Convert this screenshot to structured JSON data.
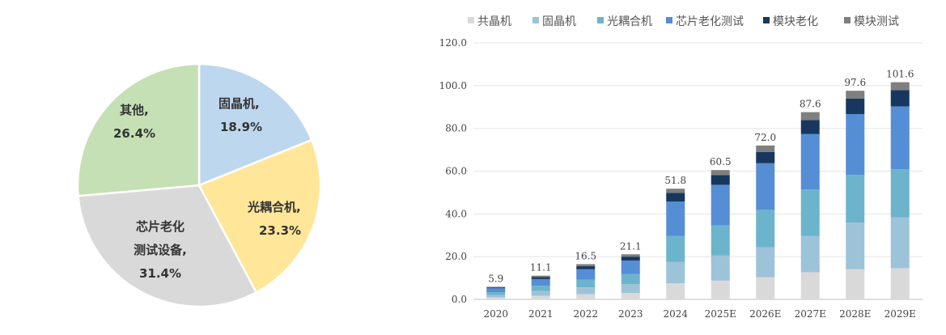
{
  "chart_data": [
    {
      "type": "pie",
      "slices": [
        {
          "label_line1": "固晶机,",
          "label_line2": "18.9%",
          "value": 18.9,
          "color": "#bdd7ee"
        },
        {
          "label_line1": "光耦合机,",
          "label_line2": "23.3%",
          "value": 23.3,
          "color": "#ffe699"
        },
        {
          "label_line1": "芯片老化",
          "label_line2": "测试设备,",
          "label_line3": "31.4%",
          "value": 31.4,
          "color": "#d9d9d9"
        },
        {
          "label_line1": "其他,",
          "label_line2": "26.4%",
          "value": 26.4,
          "color": "#c5e0b4"
        }
      ]
    },
    {
      "type": "bar",
      "stacked": true,
      "categories": [
        "2020",
        "2021",
        "2022",
        "2023",
        "2024",
        "2025E",
        "2026E",
        "2027E",
        "2028E",
        "2029E"
      ],
      "ylim": [
        0,
        120
      ],
      "yticks": [
        "0.0",
        "20.0",
        "40.0",
        "60.0",
        "80.0",
        "100.0",
        "120.0"
      ],
      "grid": true,
      "legend_position": "top",
      "totals": [
        "5.9",
        "11.1",
        "16.5",
        "21.1",
        "51.8",
        "60.5",
        "72.0",
        "87.6",
        "97.6",
        "101.6"
      ],
      "series": [
        {
          "name": "共晶机",
          "color": "#d9d9d9",
          "values": [
            0.9,
            1.7,
            2.4,
            3.0,
            7.5,
            8.8,
            10.4,
            12.7,
            14.1,
            14.6
          ]
        },
        {
          "name": "固晶机",
          "color": "#9dc3d9",
          "values": [
            1.2,
            2.2,
            3.2,
            4.1,
            10.0,
            11.7,
            14.0,
            17.0,
            21.8,
            23.8
          ]
        },
        {
          "name": "光耦合机",
          "color": "#6cb4cc",
          "values": [
            1.3,
            2.5,
            3.6,
            4.7,
            12.1,
            14.1,
            17.5,
            21.7,
            22.3,
            22.5
          ]
        },
        {
          "name": "芯片老化测试",
          "color": "#558ed5",
          "values": [
            1.8,
            3.1,
            4.9,
            6.4,
            16.2,
            19.0,
            21.8,
            26.0,
            28.5,
            29.4
          ]
        },
        {
          "name": "模块老化",
          "color": "#17375e",
          "values": [
            0.4,
            0.9,
            1.4,
            1.8,
            4.0,
            4.6,
            5.3,
            6.5,
            7.3,
            7.6
          ]
        },
        {
          "name": "模块测试",
          "color": "#7f7f7f",
          "values": [
            0.3,
            0.7,
            1.0,
            1.1,
            2.0,
            2.3,
            3.0,
            3.7,
            3.6,
            3.7
          ]
        }
      ]
    }
  ]
}
